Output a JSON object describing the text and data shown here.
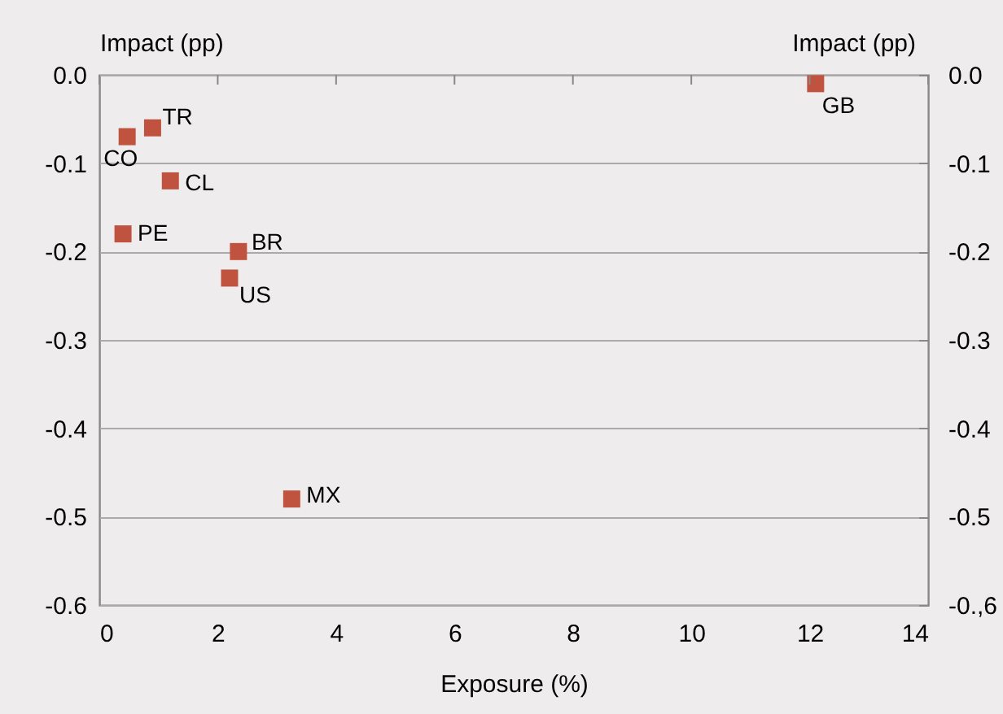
{
  "chart_data": {
    "type": "scatter",
    "xlabel": "Exposure (%)",
    "ylabel": "Impact (pp)",
    "y2label": "Impact (pp)",
    "x": [
      0.47,
      0.9,
      1.2,
      0.4,
      2.35,
      2.2,
      3.25,
      12.1
    ],
    "series": [
      {
        "color": "#c0533f",
        "values": [
          -0.07,
          -0.06,
          -0.12,
          -0.18,
          -0.2,
          -0.23,
          -0.48,
          -0.01
        ]
      }
    ],
    "xlim": [
      0,
      14
    ],
    "xticks": [
      0,
      2,
      4,
      6,
      8,
      10,
      12,
      14
    ],
    "ylim": [
      -0.6,
      0
    ],
    "yticks": [
      {
        "value": -0.6,
        "label": "-0.6"
      },
      {
        "value": -0.5,
        "label": "-0.5"
      },
      {
        "value": -0.4,
        "label": "-0.4"
      },
      {
        "value": -0.3,
        "label": "-0.3"
      },
      {
        "value": -0.2,
        "label": "-0.2"
      },
      {
        "value": -0.1,
        "label": "-0.1"
      },
      {
        "value": 0,
        "label": "0.0"
      }
    ],
    "y2lim": [
      -0.6,
      0
    ],
    "y2ticks": [
      {
        "value": -0.6,
        "label": "-0.,6"
      },
      {
        "value": -0.5,
        "label": "-0.5"
      },
      {
        "value": -0.4,
        "label": "-0.4"
      },
      {
        "value": -0.3,
        "label": "-0.3"
      },
      {
        "value": -0.2,
        "label": "-0.2"
      },
      {
        "value": -0.1,
        "label": "-0.1"
      },
      {
        "value": 0,
        "label": "0.0"
      }
    ],
    "annotations": [
      {
        "text": "CO",
        "x": 0.47,
        "y": -0.07
      },
      {
        "text": "TR",
        "x": 0.9,
        "y": -0.06
      },
      {
        "text": "CL",
        "x": 1.2,
        "y": -0.12
      },
      {
        "text": "PE",
        "x": 0.4,
        "y": -0.18
      },
      {
        "text": "BR",
        "x": 2.35,
        "y": -0.2
      },
      {
        "text": "US",
        "x": 2.2,
        "y": -0.23
      },
      {
        "text": "MX",
        "x": 3.25,
        "y": -0.48
      },
      {
        "text": "GB",
        "x": 12.1,
        "y": -0.01
      }
    ],
    "grid": "y",
    "marker": "square"
  }
}
